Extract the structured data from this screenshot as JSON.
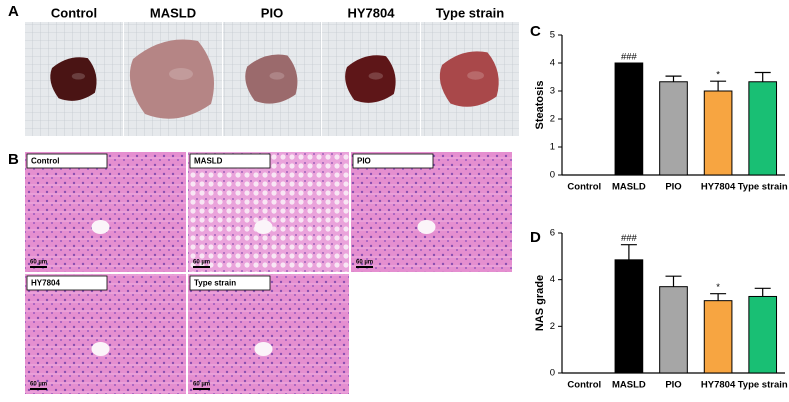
{
  "panel_a": {
    "label": "A",
    "samples": [
      "Control",
      "MASLD",
      "PIO",
      "HY7804",
      "Type strain"
    ]
  },
  "panel_b": {
    "label": "B",
    "images": [
      {
        "label": "Control",
        "scale": "60 µm"
      },
      {
        "label": "MASLD",
        "scale": "60 µm"
      },
      {
        "label": "PIO",
        "scale": "60 µm"
      },
      {
        "label": "HY7804",
        "scale": "60 µm"
      },
      {
        "label": "Type strain",
        "scale": "60 µm"
      }
    ]
  },
  "chart_data": [
    {
      "type": "bar",
      "panel_label": "C",
      "y_label": "Steatosis",
      "categories": [
        "Control",
        "MASLD",
        "PIO",
        "HY7804",
        "Type strain"
      ],
      "values": [
        0,
        4.0,
        3.33,
        3.0,
        3.33
      ],
      "errors": [
        0,
        0,
        0.2,
        0.35,
        0.33
      ],
      "value_annotations": [
        null,
        "###",
        null,
        "*",
        null
      ],
      "colors": [
        "#000000",
        "#000000",
        "#a6a6a6",
        "#f7a541",
        "#19bf74"
      ],
      "ylim": [
        0,
        5
      ],
      "yticks": [
        0,
        1,
        2,
        3,
        4,
        5
      ]
    },
    {
      "type": "bar",
      "panel_label": "D",
      "y_label": "NAS grade",
      "categories": [
        "Control",
        "MASLD",
        "PIO",
        "HY7804",
        "Type strain"
      ],
      "values": [
        0,
        4.85,
        3.7,
        3.1,
        3.28
      ],
      "errors": [
        0,
        0.65,
        0.45,
        0.3,
        0.35
      ],
      "value_annotations": [
        null,
        "###",
        null,
        "*",
        null
      ],
      "colors": [
        "#000000",
        "#000000",
        "#a6a6a6",
        "#f7a541",
        "#19bf74"
      ],
      "ylim": [
        0,
        6
      ],
      "yticks": [
        0,
        2,
        4,
        6
      ]
    }
  ]
}
